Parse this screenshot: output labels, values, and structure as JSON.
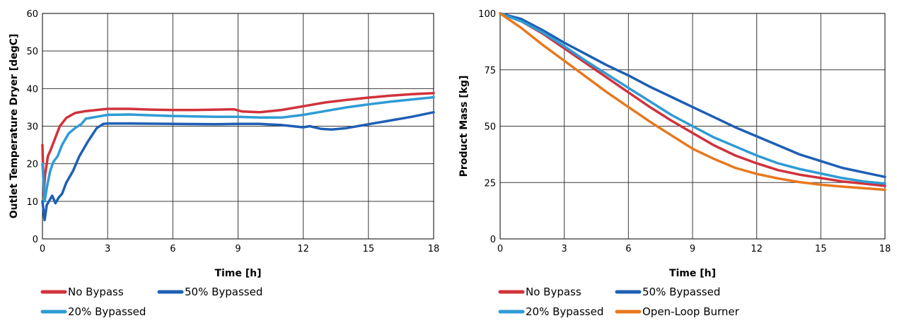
{
  "chart_data": [
    {
      "type": "line",
      "title": "",
      "xlabel": "Time [h]",
      "ylabel": "Outlet Temperature Dryer [degC]",
      "xlim": [
        0,
        18
      ],
      "ylim": [
        0,
        60
      ],
      "xticks": [
        0,
        3,
        6,
        9,
        12,
        15,
        18
      ],
      "yticks": [
        0,
        10,
        20,
        30,
        40,
        50,
        60
      ],
      "grid": true,
      "legend_position": "bottom-left",
      "series": [
        {
          "name": "No Bypass",
          "color": "#d0323c",
          "points": [
            [
              0,
              25
            ],
            [
              0.06,
              12
            ],
            [
              0.12,
              17
            ],
            [
              0.25,
              22
            ],
            [
              0.4,
              24
            ],
            [
              0.6,
              27
            ],
            [
              0.8,
              30
            ],
            [
              1.1,
              32.2
            ],
            [
              1.5,
              33.5
            ],
            [
              2,
              34
            ],
            [
              3,
              34.6
            ],
            [
              4,
              34.6
            ],
            [
              5,
              34.4
            ],
            [
              6,
              34.3
            ],
            [
              7,
              34.3
            ],
            [
              8,
              34.4
            ],
            [
              8.8,
              34.5
            ],
            [
              9.2,
              33.9
            ],
            [
              10,
              33.7
            ],
            [
              11,
              34.3
            ],
            [
              12,
              35.3
            ],
            [
              13,
              36.3
            ],
            [
              14,
              37
            ],
            [
              15,
              37.6
            ],
            [
              16,
              38.1
            ],
            [
              17,
              38.5
            ],
            [
              18,
              38.8
            ]
          ]
        },
        {
          "name": "50% Bypassed",
          "color": "#1e5fb4",
          "points": [
            [
              0,
              10
            ],
            [
              0.1,
              5
            ],
            [
              0.2,
              9
            ],
            [
              0.3,
              10
            ],
            [
              0.45,
              11.5
            ],
            [
              0.6,
              9.5
            ],
            [
              0.75,
              11
            ],
            [
              0.9,
              12
            ],
            [
              1.1,
              15
            ],
            [
              1.4,
              18
            ],
            [
              1.7,
              22
            ],
            [
              2.1,
              26
            ],
            [
              2.5,
              29.5
            ],
            [
              2.8,
              30.6
            ],
            [
              3,
              30.7
            ],
            [
              4,
              30.7
            ],
            [
              6,
              30.6
            ],
            [
              8,
              30.5
            ],
            [
              9,
              30.6
            ],
            [
              10,
              30.6
            ],
            [
              11,
              30.3
            ],
            [
              12,
              29.7
            ],
            [
              12.3,
              30
            ],
            [
              12.8,
              29.3
            ],
            [
              13.3,
              29.1
            ],
            [
              14,
              29.5
            ],
            [
              15,
              30.5
            ],
            [
              16,
              31.5
            ],
            [
              17,
              32.5
            ],
            [
              18,
              33.7
            ]
          ]
        },
        {
          "name": "20% Bypassed",
          "color": "#2f9bd5",
          "points": [
            [
              0,
              20
            ],
            [
              0.1,
              10
            ],
            [
              0.2,
              13.5
            ],
            [
              0.35,
              18
            ],
            [
              0.5,
              20.5
            ],
            [
              0.7,
              22
            ],
            [
              0.9,
              25
            ],
            [
              1.2,
              28
            ],
            [
              1.5,
              29.5
            ],
            [
              1.8,
              30.6
            ],
            [
              2,
              32
            ],
            [
              2.5,
              32.5
            ],
            [
              3,
              33
            ],
            [
              4,
              33.1
            ],
            [
              5,
              32.9
            ],
            [
              6,
              32.7
            ],
            [
              7,
              32.6
            ],
            [
              8,
              32.5
            ],
            [
              9,
              32.5
            ],
            [
              10,
              32.3
            ],
            [
              11,
              32.3
            ],
            [
              12,
              33
            ],
            [
              13,
              34
            ],
            [
              14,
              35
            ],
            [
              15,
              35.8
            ],
            [
              16,
              36.5
            ],
            [
              17,
              37.1
            ],
            [
              18,
              37.7
            ]
          ]
        }
      ]
    },
    {
      "type": "line",
      "title": "",
      "xlabel": "Time [h]",
      "ylabel": "Product Mass [kg]",
      "xlim": [
        0,
        18
      ],
      "ylim": [
        0,
        100
      ],
      "xticks": [
        0,
        3,
        6,
        9,
        12,
        15,
        18
      ],
      "yticks": [
        0,
        25,
        50,
        75,
        100
      ],
      "grid": true,
      "legend_position": "bottom-left",
      "series": [
        {
          "name": "No Bypass",
          "color": "#d0323c",
          "points": [
            [
              0,
              100
            ],
            [
              1,
              96.5
            ],
            [
              2,
              91
            ],
            [
              3,
              84.5
            ],
            [
              4,
              78
            ],
            [
              5,
              71.5
            ],
            [
              6,
              65
            ],
            [
              7,
              58.5
            ],
            [
              8,
              52.5
            ],
            [
              9,
              47
            ],
            [
              10,
              41.5
            ],
            [
              11,
              37
            ],
            [
              12,
              33.5
            ],
            [
              13,
              30.5
            ],
            [
              14,
              28.5
            ],
            [
              15,
              27
            ],
            [
              16,
              25.5
            ],
            [
              17,
              24.5
            ],
            [
              18,
              23.5
            ]
          ]
        },
        {
          "name": "50% Bypassed",
          "color": "#1e5fb4",
          "points": [
            [
              0,
              100
            ],
            [
              1,
              97.5
            ],
            [
              2,
              92.5
            ],
            [
              3,
              87
            ],
            [
              4,
              82
            ],
            [
              5,
              77
            ],
            [
              6,
              72.5
            ],
            [
              7,
              67.5
            ],
            [
              8,
              63
            ],
            [
              9,
              58.5
            ],
            [
              10,
              54
            ],
            [
              11,
              49.5
            ],
            [
              12,
              45.5
            ],
            [
              13,
              41.5
            ],
            [
              14,
              37.5
            ],
            [
              15,
              34.5
            ],
            [
              16,
              31.5
            ],
            [
              17,
              29.5
            ],
            [
              18,
              27.5
            ]
          ]
        },
        {
          "name": "20% Bypassed",
          "color": "#2f9bd5",
          "points": [
            [
              0,
              100
            ],
            [
              1,
              96.5
            ],
            [
              2,
              91.5
            ],
            [
              3,
              85.5
            ],
            [
              4,
              79
            ],
            [
              5,
              73
            ],
            [
              6,
              67
            ],
            [
              7,
              61
            ],
            [
              8,
              55
            ],
            [
              9,
              50
            ],
            [
              10,
              45
            ],
            [
              11,
              41
            ],
            [
              12,
              37
            ],
            [
              13,
              33.5
            ],
            [
              14,
              31
            ],
            [
              15,
              29
            ],
            [
              16,
              27
            ],
            [
              17,
              25.5
            ],
            [
              18,
              24.5
            ]
          ]
        },
        {
          "name": "Open-Loop Burner",
          "color": "#e8781e",
          "points": [
            [
              0,
              100
            ],
            [
              1,
              93.5
            ],
            [
              2,
              86
            ],
            [
              3,
              79
            ],
            [
              4,
              72
            ],
            [
              5,
              65
            ],
            [
              6,
              58.5
            ],
            [
              7,
              52
            ],
            [
              8,
              46
            ],
            [
              9,
              40
            ],
            [
              10,
              35.5
            ],
            [
              11,
              31.5
            ],
            [
              12,
              28.8
            ],
            [
              13,
              26.8
            ],
            [
              14,
              25.2
            ],
            [
              15,
              24
            ],
            [
              16,
              23.2
            ],
            [
              17,
              22.5
            ],
            [
              18,
              21.8
            ]
          ]
        }
      ]
    }
  ],
  "legends": [
    {
      "items": [
        {
          "label": "No Bypass",
          "color": "#d0323c"
        },
        {
          "label": "50% Bypassed",
          "color": "#1e5fb4"
        },
        {
          "label": "20% Bypassed",
          "color": "#2f9bd5"
        }
      ]
    },
    {
      "items": [
        {
          "label": "No Bypass",
          "color": "#d0323c"
        },
        {
          "label": "50% Bypassed",
          "color": "#1e5fb4"
        },
        {
          "label": "20% Bypassed",
          "color": "#2f9bd5"
        },
        {
          "label": "Open-Loop Burner",
          "color": "#e8781e"
        }
      ]
    }
  ]
}
